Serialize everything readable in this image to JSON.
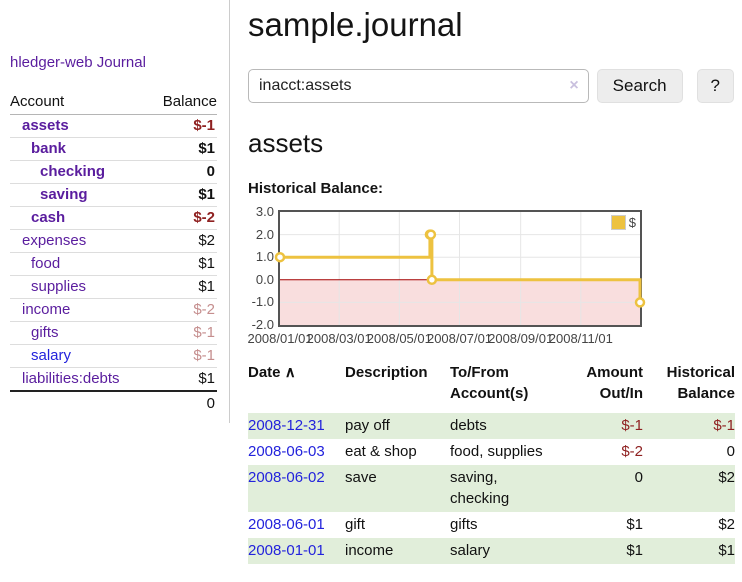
{
  "colors": {
    "link_purple": "#5a1d9e",
    "link_blue": "#2323dc",
    "negative_strong": "#8f2121",
    "negative_soft": "#c58e8e",
    "row_highlight_green": "#e1eeda",
    "chart_series_yellow": "#edc240",
    "chart_negative_region": "#f9dede",
    "chart_zero_line": "#a40000"
  },
  "sidebar": {
    "brand": "hledger-web",
    "journal_link": "Journal",
    "table": {
      "headers": [
        "Account",
        "Balance"
      ],
      "rows": [
        {
          "account": "assets",
          "indent": 1,
          "bold": true,
          "balance": "$-1",
          "tone": "neg-strong",
          "link_style": "purple"
        },
        {
          "account": "bank",
          "indent": 2,
          "bold": true,
          "balance": "$1",
          "tone": "plain",
          "link_style": "purple"
        },
        {
          "account": "checking",
          "indent": 3,
          "bold": true,
          "balance": "0",
          "tone": "plain",
          "link_style": "purple"
        },
        {
          "account": "saving",
          "indent": 3,
          "bold": true,
          "balance": "$1",
          "tone": "plain",
          "link_style": "purple"
        },
        {
          "account": "cash",
          "indent": 2,
          "bold": true,
          "balance": "$-2",
          "tone": "neg-strong",
          "link_style": "purple"
        },
        {
          "account": "expenses",
          "indent": 1,
          "bold": false,
          "balance": "$2",
          "tone": "plain",
          "link_style": "purple"
        },
        {
          "account": "food",
          "indent": 2,
          "bold": false,
          "balance": "$1",
          "tone": "plain",
          "link_style": "purple"
        },
        {
          "account": "supplies",
          "indent": 2,
          "bold": false,
          "balance": "$1",
          "tone": "plain",
          "link_style": "purple"
        },
        {
          "account": "income",
          "indent": 1,
          "bold": false,
          "balance": "$-2",
          "tone": "neg-soft",
          "link_style": "purple"
        },
        {
          "account": "gifts",
          "indent": 2,
          "bold": false,
          "balance": "$-1",
          "tone": "neg-soft",
          "link_style": "purple"
        },
        {
          "account": "salary",
          "indent": 2,
          "bold": false,
          "balance": "$-1",
          "tone": "neg-soft",
          "link_style": "blue"
        },
        {
          "account": "liabilities:debts",
          "indent": 1,
          "bold": false,
          "balance": "$1",
          "tone": "plain",
          "link_style": "purple"
        }
      ],
      "total": "0"
    }
  },
  "main": {
    "title": "sample.journal",
    "account_title": "assets",
    "chart_heading": "Historical Balance:"
  },
  "search": {
    "value": "inacct:assets",
    "clear_icon": "×",
    "button_label": "Search",
    "help_label": "?"
  },
  "chart_data": {
    "type": "line",
    "step": true,
    "x_range": [
      "2008-01-01",
      "2008-12-31"
    ],
    "ylim": [
      -2,
      3
    ],
    "yticks": [
      "3.0",
      "2.0",
      "1.0",
      "0.0",
      "-1.0",
      "-2.0"
    ],
    "xticks": [
      "2008/01/01",
      "2008/03/01",
      "2008/05/01",
      "2008/07/01",
      "2008/09/01",
      "2008/11/01"
    ],
    "series": [
      {
        "name": "$",
        "color": "#edc240",
        "points": [
          [
            "2008-01-01",
            1
          ],
          [
            "2008-06-01",
            2
          ],
          [
            "2008-06-02",
            2
          ],
          [
            "2008-06-03",
            0
          ],
          [
            "2008-12-31",
            -1
          ]
        ]
      }
    ],
    "negative_fill": "#f9dede",
    "zero_line_color": "#a40000",
    "grid": true,
    "legend_position": "top-right"
  },
  "register": {
    "headers": [
      "Date",
      "Description",
      "To/From Account(s)",
      "Amount Out/In",
      "Historical Balance"
    ],
    "sort_indicator": "∧",
    "rows": [
      {
        "date": "2008-12-31",
        "description": "pay off",
        "accounts": "debts",
        "amount": "$-1",
        "amount_tone": "neg",
        "balance": "$-1",
        "balance_tone": "neg",
        "highlight": true
      },
      {
        "date": "2008-06-03",
        "description": "eat & shop",
        "accounts": "food, supplies",
        "amount": "$-2",
        "amount_tone": "neg",
        "balance": "0",
        "balance_tone": "plain",
        "highlight": false
      },
      {
        "date": "2008-06-02",
        "description": "save",
        "accounts": "saving,\nchecking",
        "amount": "0",
        "amount_tone": "plain",
        "balance": "$2",
        "balance_tone": "plain",
        "highlight": true
      },
      {
        "date": "2008-06-01",
        "description": "gift",
        "accounts": "gifts",
        "amount": "$1",
        "amount_tone": "plain",
        "balance": "$2",
        "balance_tone": "plain",
        "highlight": false
      },
      {
        "date": "2008-01-01",
        "description": "income",
        "accounts": "salary",
        "amount": "$1",
        "amount_tone": "plain",
        "balance": "$1",
        "balance_tone": "plain",
        "highlight": true
      }
    ]
  }
}
